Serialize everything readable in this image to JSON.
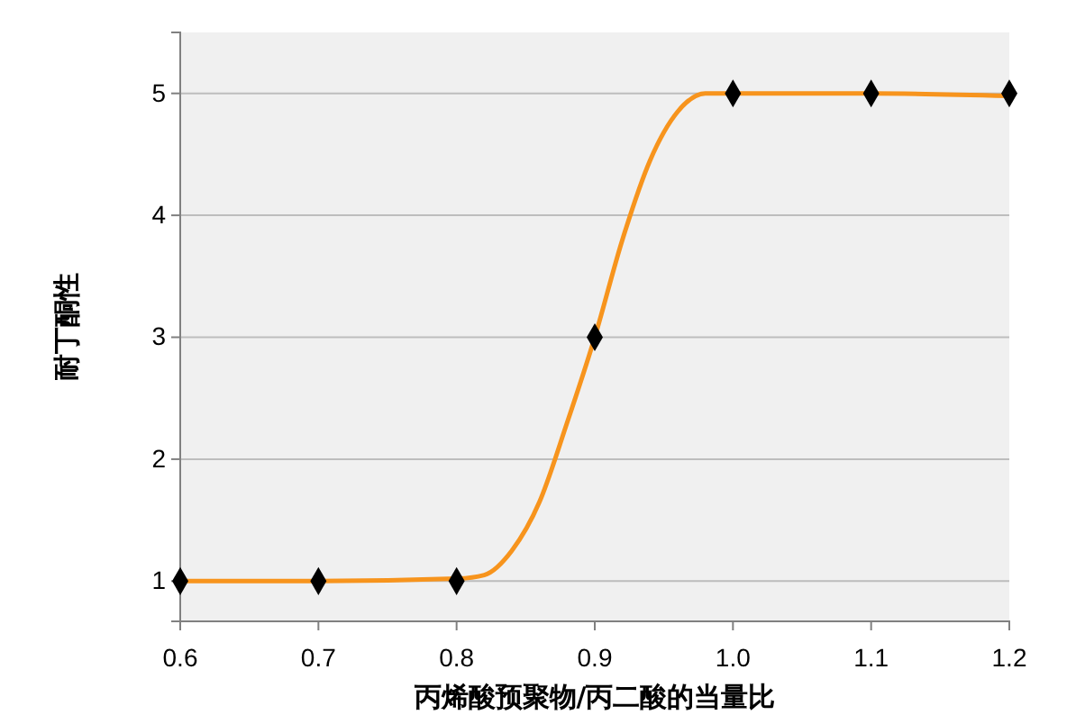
{
  "chart_data": {
    "type": "scatter",
    "xlabel": "丙烯酸预聚物/丙二酸的当量比",
    "ylabel": "耐丁酮性",
    "xlim": [
      0.6,
      1.2
    ],
    "xticks": [
      0.6,
      0.7,
      0.8,
      0.9,
      {
        "value": 1,
        "label": "1.0"
      },
      1.1,
      1.2
    ],
    "ylim": [
      0.67,
      5.5
    ],
    "yticks": [
      1,
      2,
      3,
      4,
      5
    ],
    "grid": "y",
    "series": [
      {
        "type": "line",
        "color": "#f7941d",
        "marker": "none",
        "x": [
          0.6,
          0.7,
          0.8,
          0.82,
          0.84,
          0.86,
          0.88,
          0.9,
          0.92,
          0.94,
          0.96,
          0.98,
          1.0,
          1.1,
          1.2
        ],
        "values": [
          1,
          1,
          1.02,
          1.05,
          1.25,
          1.65,
          2.3,
          3,
          3.8,
          4.45,
          4.85,
          5,
          5,
          5,
          4.98
        ]
      },
      {
        "color": "#000000",
        "marker": "diamond",
        "x": [
          0.6,
          0.7,
          0.8,
          0.9,
          1.0,
          1.1,
          1.2
        ],
        "values": [
          1,
          1,
          1,
          3,
          5,
          5,
          5
        ]
      }
    ]
  }
}
